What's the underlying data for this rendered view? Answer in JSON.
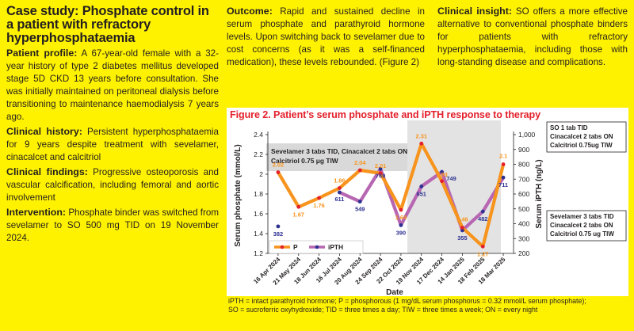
{
  "col1": {
    "title": "Case study: Phosphate control in a patient with refractory hyperphosphataemia",
    "profile_label": "Patient profile:",
    "profile_text": " A 67-year-old female with a 32-year history of type 2 diabetes mellitus developed stage 5D CKD 13 years before consultation. She was initially maintained on peritoneal dialysis before transitioning to maintenance haemodialysis 7 years ago.",
    "history_label": "Clinical history:",
    "history_text": " Persistent hyperphosphataemia for 9 years despite treatment with sevelamer, cinacalcet and calcitriol",
    "findings_label": "Clinical findings:",
    "findings_text": " Progressive osteoporosis and vascular calcification, including femoral and aortic involvement",
    "intervention_label": "Intervention:",
    "intervention_text": " Phosphate binder was switched from sevelamer to SO 500 mg TID on 19 November 2024."
  },
  "col2": {
    "outcome_label": "Outcome:",
    "outcome_text": " Rapid and sustained decline in serum phosphate and parathyroid hormone levels. Upon switching back to sevelamer due to cost concerns (as it was a self-financed medication), these levels rebounded. (Figure 2)"
  },
  "col3": {
    "insight_label": "Clinical insight:",
    "insight_text": " SO offers a more effective alternative to conventional phosphate binders for patients with refractory hyperphosphataemia, including those with long-standing disease and complications."
  },
  "figure": {
    "title": "Figure 2. Patient’s serum phosphate and iPTH response to therapy",
    "footnote_lines": [
      "iPTH = intact parathyroid hormone; P = phosphorous (1 mg/dL serum phosphorus = 0.32 mmol/L serum phosphate);",
      "SO = sucroferric oxyhydroxide; TID = three times a day; TIW = three times a week; ON = every night"
    ]
  },
  "chart_data": {
    "type": "line",
    "xlabel": "Date",
    "ylabel_left": "Serum phosphate (mmol/L)",
    "ylabel_right": "Serum iPTH (ng/L)",
    "categories": [
      "16 Apr 2024",
      "21 May 2024",
      "18 Jun 2024",
      "16 Jul 2024",
      "20 Aug 2024",
      "24 Sep 2024",
      "22 Oct 2024",
      "19 Nov 2024",
      "17 Dec 2024",
      "14 Jan 2025",
      "18 Feb 2025",
      "18 Mar 2025"
    ],
    "y_left_ticks": [
      "1.2",
      "1.4",
      "1.6",
      "1.8",
      "2",
      "2.2",
      "2.4"
    ],
    "y_left_range": [
      1.2,
      2.4
    ],
    "y_right_ticks": [
      "200",
      "300",
      "400",
      "500",
      "600",
      "700",
      "800",
      "900",
      "1,000"
    ],
    "y_right_range": [
      200,
      1000
    ],
    "series": [
      {
        "name": "P",
        "axis": "left",
        "color": "#F7941D",
        "values": [
          2.02,
          1.67,
          1.76,
          1.86,
          2.04,
          2.01,
          1.64,
          2.31,
          1.93,
          1.46,
          1.27,
          2.1
        ],
        "labels": [
          "2.02",
          "1.67",
          "1.76",
          "1.86",
          "2.04",
          "2.01",
          "1.64",
          "2.31",
          "1.93",
          "1.46",
          "1.27",
          "2.1"
        ]
      },
      {
        "name": "iPTH",
        "axis": "right",
        "color": "#B766B2",
        "values": [
          382,
          null,
          null,
          611,
          549,
          769,
          390,
          651,
          749,
          355,
          482,
          711
        ],
        "labels": [
          "382",
          "",
          "",
          "611",
          "549",
          "769",
          "390",
          "651",
          "749",
          "355",
          "482",
          "711"
        ]
      }
    ],
    "annotations": {
      "first_regimen": [
        "Sevelamer 3 tabs TID, Cinacalcet 2 tabs ON,",
        "Calcitriol 0.75 μg TIW"
      ],
      "so_regimen": [
        "SO 1 tab TID",
        "Cinacalcet 2 tabs ON",
        "Calcitriol 0.75ug TIW"
      ],
      "switch_back_regimen": [
        "Sevelamer 3 tabs TID",
        "Cinacalcet 2 tabs ON",
        "Calcitriol 0.75 ug TIW"
      ]
    },
    "legend_placement": "bottom-left",
    "grid": false
  }
}
